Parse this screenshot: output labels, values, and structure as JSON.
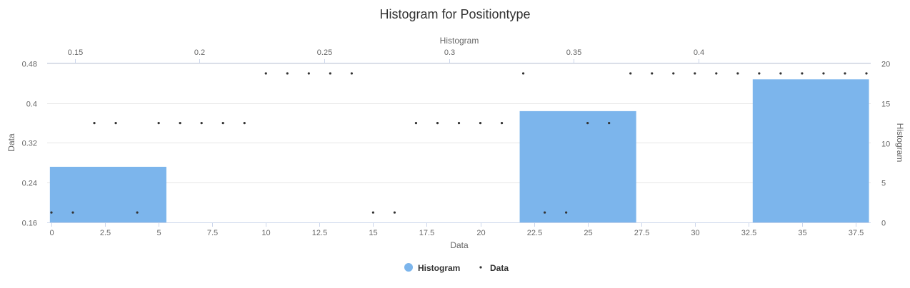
{
  "chart_data": {
    "type": "histogram+scatter",
    "title": "Histogram for Positiontype",
    "colors": {
      "histogram": "#7cb5ec",
      "data": "#333333",
      "grid": "#e6e6e6"
    },
    "axes": {
      "x_bottom": {
        "title": "Data",
        "min": -0.2,
        "max": 38.2,
        "ticks": [
          0,
          2.5,
          5,
          7.5,
          10,
          12.5,
          15,
          17.5,
          20,
          22.5,
          25,
          27.5,
          30,
          32.5,
          35,
          37.5
        ]
      },
      "x_top": {
        "title": "Histogram",
        "min": 0.1389,
        "max": 0.469,
        "ticks": [
          0.15,
          0.2,
          0.25,
          0.3,
          0.35,
          0.4
        ]
      },
      "y_left": {
        "title": "Data",
        "min": 0.16,
        "max": 0.48,
        "ticks": [
          0.16,
          0.24,
          0.32,
          0.4,
          0.48
        ]
      },
      "y_right": {
        "title": "Histogram",
        "min": 0,
        "max": 20,
        "ticks": [
          0,
          5,
          10,
          15,
          20
        ]
      }
    },
    "series": [
      {
        "name": "Histogram",
        "kind": "column",
        "bins": [
          {
            "x0": 0.14,
            "x1": 0.1867,
            "count": 7
          },
          {
            "x0": 0.3283,
            "x1": 0.375,
            "count": 14
          },
          {
            "x0": 0.4217,
            "x1": 0.4683,
            "count": 18
          }
        ]
      },
      {
        "name": "Data",
        "kind": "scatter",
        "x": [
          0,
          1,
          2,
          3,
          4,
          5,
          6,
          7,
          8,
          9,
          10,
          11,
          12,
          13,
          14,
          15,
          16,
          17,
          18,
          19,
          20,
          21,
          22,
          23,
          24,
          25,
          26,
          27,
          28,
          29,
          30,
          31,
          32,
          33,
          34,
          35,
          36,
          37,
          38
        ],
        "y": [
          0.18,
          0.18,
          0.36,
          0.36,
          0.18,
          0.36,
          0.36,
          0.36,
          0.36,
          0.36,
          0.46,
          0.46,
          0.46,
          0.46,
          0.46,
          0.18,
          0.18,
          0.36,
          0.36,
          0.36,
          0.36,
          0.36,
          0.46,
          0.18,
          0.18,
          0.36,
          0.36,
          0.46,
          0.46,
          0.46,
          0.46,
          0.46,
          0.46,
          0.46,
          0.46,
          0.46,
          0.46,
          0.46,
          0.46
        ]
      }
    ],
    "legend": {
      "position": "bottom-center",
      "items": [
        "Histogram",
        "Data"
      ]
    }
  }
}
